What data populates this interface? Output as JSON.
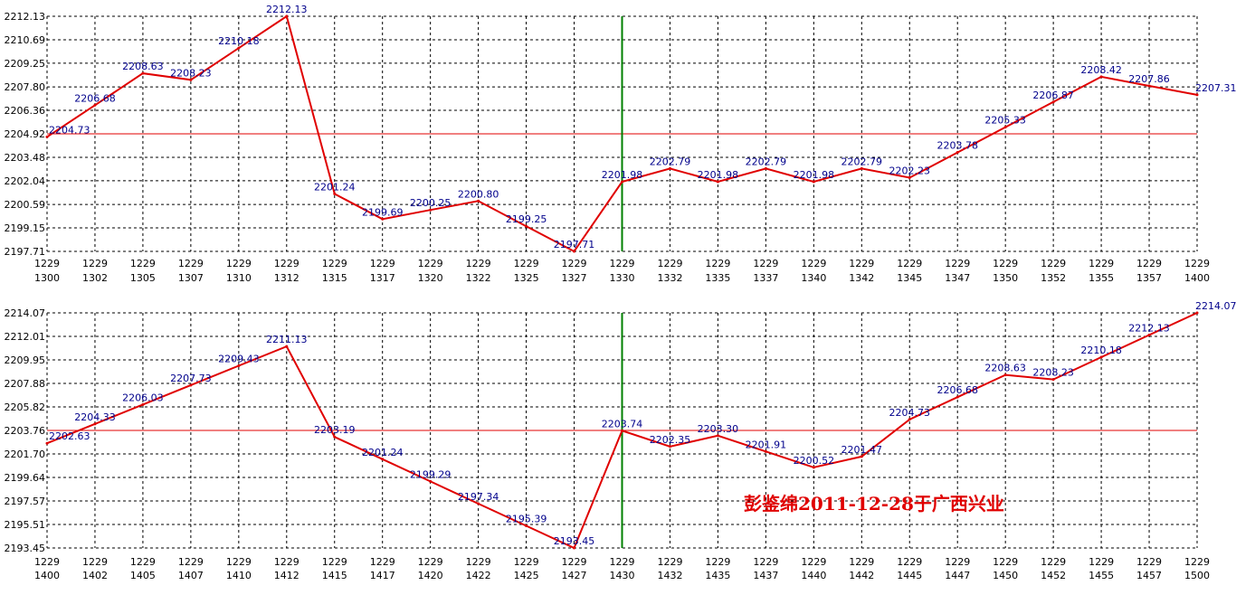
{
  "chart_data": [
    {
      "type": "line",
      "y_ticks": [
        "2197.71",
        "2199.15",
        "2200.59",
        "2202.04",
        "2203.48",
        "2204.92",
        "2206.36",
        "2207.80",
        "2209.25",
        "2210.69",
        "2212.13"
      ],
      "ylim": [
        2197.71,
        2212.13
      ],
      "x_ticks": [
        [
          "1229",
          "1300"
        ],
        [
          "1229",
          "1302"
        ],
        [
          "1229",
          "1305"
        ],
        [
          "1229",
          "1307"
        ],
        [
          "1229",
          "1310"
        ],
        [
          "1229",
          "1312"
        ],
        [
          "1229",
          "1315"
        ],
        [
          "1229",
          "1317"
        ],
        [
          "1229",
          "1320"
        ],
        [
          "1229",
          "1322"
        ],
        [
          "1229",
          "1325"
        ],
        [
          "1229",
          "1327"
        ],
        [
          "1229",
          "1330"
        ],
        [
          "1229",
          "1332"
        ],
        [
          "1229",
          "1335"
        ],
        [
          "1229",
          "1337"
        ],
        [
          "1229",
          "1340"
        ],
        [
          "1229",
          "1342"
        ],
        [
          "1229",
          "1345"
        ],
        [
          "1229",
          "1347"
        ],
        [
          "1229",
          "1350"
        ],
        [
          "1229",
          "1352"
        ],
        [
          "1229",
          "1355"
        ],
        [
          "1229",
          "1357"
        ],
        [
          "1229",
          "1400"
        ]
      ],
      "reference_value": 2204.92,
      "marker_index": 12,
      "series": [
        {
          "values": [
            2204.73,
            2206.68,
            2208.63,
            2208.23,
            2210.18,
            2212.13,
            2201.24,
            2199.69,
            2200.25,
            2200.8,
            2199.25,
            2197.71,
            2201.98,
            2202.79,
            2201.98,
            2202.79,
            2201.98,
            2202.79,
            2202.23,
            2203.78,
            2205.33,
            2206.87,
            2208.42,
            2207.86,
            2207.31
          ],
          "labels": [
            "2204.73",
            "2206.68",
            "2208.63",
            "2208.23",
            "2210.18",
            "2212.13",
            "2201.24",
            "2199.69",
            "2200.25",
            "2200.80",
            "2199.25",
            "2197.71",
            "2201.98",
            "2202.79",
            "2201.98",
            "2202.79",
            "2201.98",
            "2202.79",
            "2202.23",
            "2203.78",
            "2205.33",
            "2206.87",
            "2208.42",
            "2207.86",
            "2207.31"
          ]
        }
      ],
      "colors": {
        "line": "#e00000",
        "labels": "#00008b",
        "marker": "#008000",
        "grid": "#000000"
      },
      "grid": true
    },
    {
      "type": "line",
      "y_ticks": [
        "2193.45",
        "2195.51",
        "2197.57",
        "2199.64",
        "2201.70",
        "2203.76",
        "2205.82",
        "2207.88",
        "2209.95",
        "2212.01",
        "2214.07"
      ],
      "ylim": [
        2193.45,
        2214.07
      ],
      "x_ticks": [
        [
          "1229",
          "1400"
        ],
        [
          "1229",
          "1402"
        ],
        [
          "1229",
          "1405"
        ],
        [
          "1229",
          "1407"
        ],
        [
          "1229",
          "1410"
        ],
        [
          "1229",
          "1412"
        ],
        [
          "1229",
          "1415"
        ],
        [
          "1229",
          "1417"
        ],
        [
          "1229",
          "1420"
        ],
        [
          "1229",
          "1422"
        ],
        [
          "1229",
          "1425"
        ],
        [
          "1229",
          "1427"
        ],
        [
          "1229",
          "1430"
        ],
        [
          "1229",
          "1432"
        ],
        [
          "1229",
          "1435"
        ],
        [
          "1229",
          "1437"
        ],
        [
          "1229",
          "1440"
        ],
        [
          "1229",
          "1442"
        ],
        [
          "1229",
          "1445"
        ],
        [
          "1229",
          "1447"
        ],
        [
          "1229",
          "1450"
        ],
        [
          "1229",
          "1452"
        ],
        [
          "1229",
          "1455"
        ],
        [
          "1229",
          "1457"
        ],
        [
          "1229",
          "1500"
        ]
      ],
      "reference_value": 2203.76,
      "marker_index": 12,
      "series": [
        {
          "values": [
            2202.63,
            2204.33,
            2206.03,
            2207.73,
            2209.43,
            2211.13,
            2203.19,
            2201.24,
            2199.29,
            2197.34,
            2195.39,
            2193.45,
            2203.74,
            2202.35,
            2203.3,
            2201.91,
            2200.52,
            2201.47,
            2204.73,
            2206.68,
            2208.63,
            2208.23,
            2210.18,
            2212.13,
            2214.07
          ],
          "labels": [
            "2202.63",
            "2204.33",
            "2206.03",
            "2207.73",
            "2209.43",
            "2211.13",
            "2203.19",
            "2201.24",
            "2199.29",
            "2197.34",
            "2195.39",
            "2193.45",
            "2203.74",
            "2202.35",
            "2203.30",
            "2201.91",
            "2200.52",
            "2201.47",
            "2204.73",
            "2206.68",
            "2208.63",
            "2208.23",
            "2210.18",
            "2212.13",
            "2214.07"
          ]
        }
      ],
      "colors": {
        "line": "#e00000",
        "labels": "#00008b",
        "marker": "#008000",
        "grid": "#000000"
      },
      "grid": true
    }
  ],
  "watermark": {
    "text": "彭鉴绵2011-12-28于广西兴业",
    "color": "#e00000"
  }
}
